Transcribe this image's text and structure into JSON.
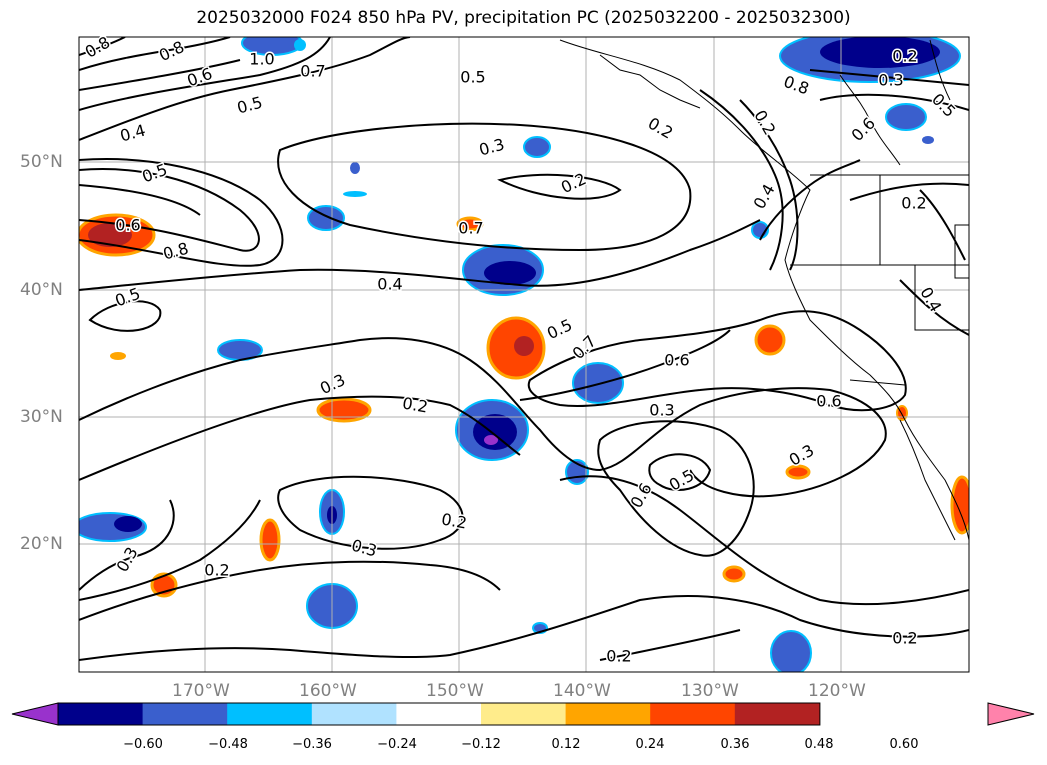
{
  "title": "2025032000 F024 850 hPa PV, precipitation PC (2025032200 - 2025032300)",
  "map": {
    "lat_ticks": [
      "50°N",
      "40°N",
      "30°N",
      "20°N"
    ],
    "lon_ticks": [
      "170°W",
      "160°W",
      "150°W",
      "140°W",
      "130°W",
      "120°W"
    ],
    "contour_labels": [
      "0.8",
      "0.8",
      "1.0",
      "0.7",
      "0.6",
      "0.5",
      "0.5",
      "0.4",
      "0.3",
      "0.2",
      "0.5",
      "0.6",
      "0.8",
      "0.7",
      "0.4",
      "0.5",
      "0.5",
      "0.7",
      "0.6",
      "0.3",
      "0.2",
      "0.3",
      "0.6",
      "0.5",
      "0.6",
      "0.3",
      "0.2",
      "0.3",
      "0.2",
      "0.3",
      "0.2",
      "0.2",
      "0.2",
      "0.4",
      "0.6",
      "0.2",
      "0.2",
      "0.8",
      "0.3",
      "0.5",
      "0.4",
      "0.2",
      "0.6"
    ]
  },
  "colorbar": {
    "colors": [
      "#9932cc",
      "#00008b",
      "#3a5fcd",
      "#00bfff",
      "#b0e2ff",
      "#ffffff",
      "#ffec8b",
      "#ffa500",
      "#ff4500",
      "#b22222",
      "#ff82ab"
    ],
    "labels": [
      "−0.60",
      "−0.48",
      "−0.36",
      "−0.24",
      "−0.12",
      "0.12",
      "0.24",
      "0.36",
      "0.48",
      "0.60"
    ]
  }
}
